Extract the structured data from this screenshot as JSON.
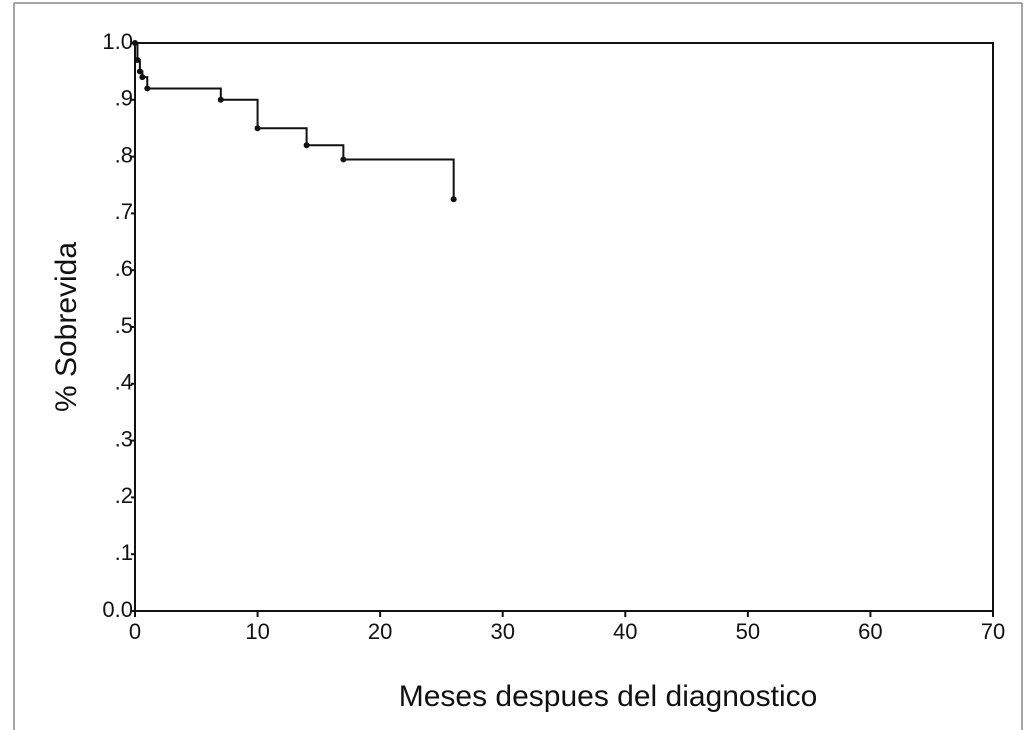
{
  "chart_data": {
    "type": "step",
    "x_label": "Meses despues del diagnostico",
    "y_label": "% Sobrevida",
    "x": [
      0,
      0.2,
      0.4,
      0.6,
      1,
      7,
      10,
      14,
      17,
      26
    ],
    "values": [
      1.0,
      0.97,
      0.95,
      0.94,
      0.92,
      0.9,
      0.85,
      0.82,
      0.795,
      0.725
    ],
    "color": "#111111",
    "xlim": [
      0,
      70
    ],
    "xticks": [
      0,
      10,
      20,
      30,
      40,
      50,
      60,
      70
    ],
    "ylim": [
      0,
      1
    ],
    "yticks": [
      {
        "value": 0,
        "label": "0.0"
      },
      {
        "value": 0.1,
        "label": ".1"
      },
      {
        "value": 0.2,
        "label": ".2"
      },
      {
        "value": 0.3,
        "label": ".3"
      },
      {
        "value": 0.4,
        "label": ".4"
      },
      {
        "value": 0.5,
        "label": ".5"
      },
      {
        "value": 0.6,
        "label": ".6"
      },
      {
        "value": 0.7,
        "label": ".7"
      },
      {
        "value": 0.8,
        "label": ".8"
      },
      {
        "value": 0.9,
        "label": ".9"
      },
      {
        "value": 1,
        "label": "1.0"
      }
    ],
    "grid": false
  }
}
